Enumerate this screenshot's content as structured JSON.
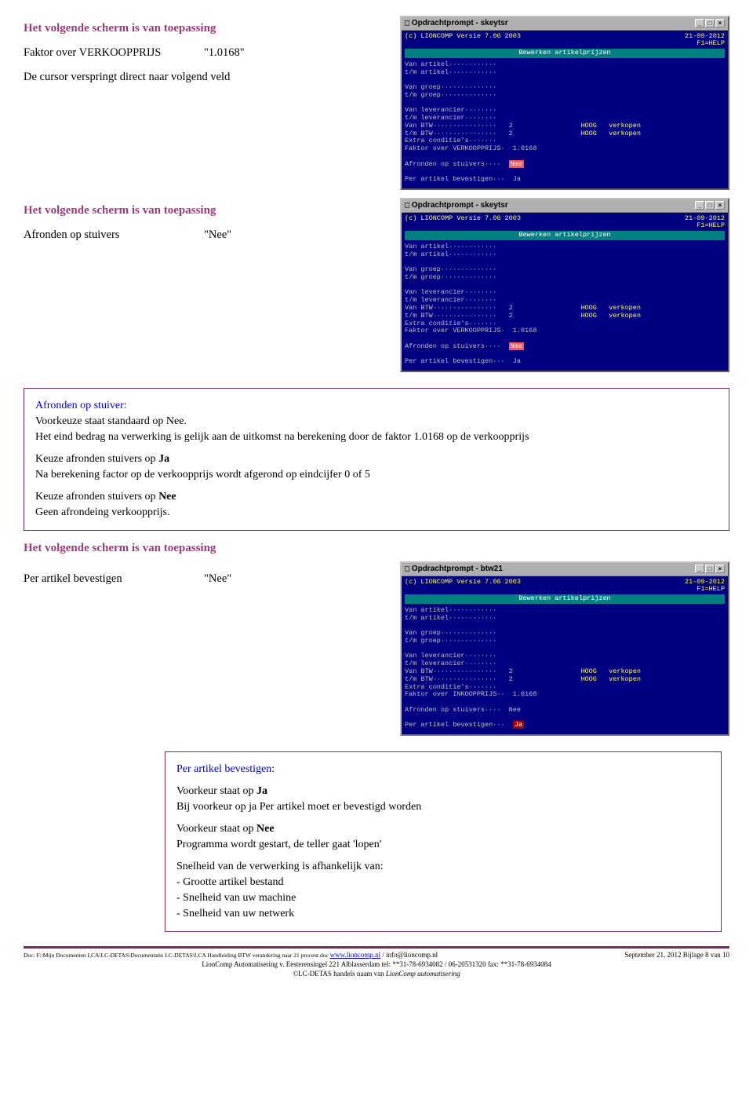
{
  "section1": {
    "heading": "Het volgende scherm is van toepassing",
    "label": "Faktor over VERKOOPPRIJS",
    "value": "\"1.0168\"",
    "body": "De cursor verspringt direct naar volgend veld"
  },
  "dos1": {
    "title": "Opdrachtprompt - skeytsr",
    "version": "(c) LIONCOMP Versie 7.06 2003",
    "date": "21-09-2012",
    "help": "F1=HELP",
    "subtitle": "Bewerken artikelprijzen",
    "lines": [
      {
        "t": "Van artikel············"
      },
      {
        "t": "t/m artikel············"
      },
      {
        "t": " "
      },
      {
        "t": "Van groep··············"
      },
      {
        "t": "t/m groep··············"
      },
      {
        "t": " "
      },
      {
        "t": "Van leverancier········"
      },
      {
        "t": "t/m leverancier········"
      },
      {
        "t": "Van BTW················   2                 ",
        "suf": "HOOG   verkopen",
        "sc": "y"
      },
      {
        "t": "t/m BTW················   2                 ",
        "suf": "HOOG   verkopen",
        "sc": "y"
      },
      {
        "t": "Extra conditie's·······"
      },
      {
        "t": "Faktor over VERKOOPPRIJS·  1.0168"
      },
      {
        "t": " "
      },
      {
        "t": "Afronden op stuivers····  ",
        "suf": "Nee",
        "sc": "r"
      },
      {
        "t": " "
      },
      {
        "t": "Per artikel bevestigen···  Ja"
      }
    ]
  },
  "section2": {
    "heading": "Het volgende scherm is van toepassing",
    "label": "Afronden op stuivers",
    "value": "\"Nee\""
  },
  "dos2": {
    "title": "Opdrachtprompt - skeytsr",
    "version": "(c) LIONCOMP Versie 7.06 2003",
    "date": "21-09-2012",
    "help": "F1=HELP",
    "subtitle": "Bewerken artikelprijzen",
    "lines": [
      {
        "t": "Van artikel············"
      },
      {
        "t": "t/m artikel············"
      },
      {
        "t": " "
      },
      {
        "t": "Van groep··············"
      },
      {
        "t": "t/m groep··············"
      },
      {
        "t": " "
      },
      {
        "t": "Van leverancier········"
      },
      {
        "t": "t/m leverancier········"
      },
      {
        "t": "Van BTW················   2                 ",
        "suf": "HOOG   verkopen",
        "sc": "y"
      },
      {
        "t": "t/m BTW················   2                 ",
        "suf": "HOOG   verkopen",
        "sc": "y"
      },
      {
        "t": "Extra conditie's·······"
      },
      {
        "t": "Faktor over VERKOOPPRIJS·  1.0168"
      },
      {
        "t": " "
      },
      {
        "t": "Afronden op stuivers····  ",
        "suf": "Nee",
        "sc": "r"
      },
      {
        "t": " "
      },
      {
        "t": "Per artikel bevestigen···  Ja"
      }
    ]
  },
  "box1": {
    "l1": "Afronden op stuiver:",
    "l2": "Voorkeuze staat standaard op Nee.",
    "l3": "Het eind bedrag na verwerking is gelijk aan de uitkomst na berekening door de faktor 1.0168 op de verkoopprijs",
    "l4a": "Keuze afronden stuivers op ",
    "l4b": "Ja",
    "l5": "Na berekening factor op de verkoopprijs wordt afgerond op eindcijfer 0 of 5",
    "l6a": "Keuze afronden stuivers op ",
    "l6b": "Nee",
    "l7": "Geen afrondeing verkoopprijs."
  },
  "section3": {
    "heading": "Het volgende scherm is van toepassing",
    "label": "Per artikel bevestigen",
    "value": "\"Nee\""
  },
  "dos3": {
    "title": "Opdrachtprompt - btw21",
    "version": "(c) LIONCOMP Versie 7.06 2003",
    "date": "21-09-2012",
    "help": "F1=HELP",
    "subtitle": "Bewerken artikelprijzen",
    "lines": [
      {
        "t": "Van artikel············"
      },
      {
        "t": "t/m artikel············"
      },
      {
        "t": " "
      },
      {
        "t": "Van groep··············"
      },
      {
        "t": "t/m groep··············"
      },
      {
        "t": " "
      },
      {
        "t": "Van leverancier········"
      },
      {
        "t": "t/m leverancier········"
      },
      {
        "t": "Van BTW················   2                 ",
        "suf": "HOOG   verkopen",
        "sc": "y"
      },
      {
        "t": "t/m BTW················   2                 ",
        "suf": "HOOG   verkopen",
        "sc": "y"
      },
      {
        "t": "Extra conditie's·······"
      },
      {
        "t": "Faktor over INKOOPPRIJS··  1.0168"
      },
      {
        "t": " "
      },
      {
        "t": "Afronden op stuivers····  Nee"
      },
      {
        "t": " "
      },
      {
        "t": "Per artikel bevestigen···  ",
        "suf": "Ja",
        "sc": "rhl"
      }
    ]
  },
  "box2": {
    "l1": "Per artikel bevestigen:",
    "l2a": "Voorkeur staat op ",
    "l2b": "Ja",
    "l3": "Bij voorkeur op ja  Per artikel moet er bevestigd worden",
    "l4a": "Voorkeur staat op ",
    "l4b": "Nee",
    "l5": "Programma wordt gestart, de teller gaat 'lopen'",
    "l6": "Snelheid van de verwerking is afhankelijk van:",
    "l7": "-          Grootte artikel bestand",
    "l8": "-          Snelheid van uw machine",
    "l9": "-          Snelheid van uw netwerk"
  },
  "footer": {
    "docpath": "Doc: F:\\Mijn Documenten LCA\\LC-DETAS\\Documentatie LC-DETAS\\LCA Handleiding BTW verandering naar 21 procent.doc ",
    "url": "www.lioncomp.nl",
    "email": " / info@lioncomp.nl",
    "right": "September 21, 2012    Bijlage 8 van 10",
    "line2": "LionComp Automatisering  v. Eesterensingel  221 Alblasserdam  tel: **31-78-6934082 / 06-20531320 fax: **31-78-6934084",
    "line3a": "©LC-DETAS handels naam van ",
    "line3b": "LionComp automatisering"
  }
}
